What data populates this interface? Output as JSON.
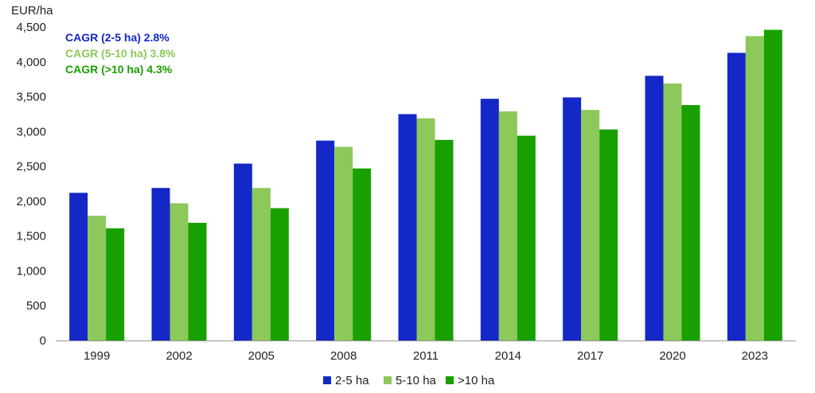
{
  "chart_data": {
    "type": "bar",
    "unit_label": "EUR/ha",
    "categories": [
      "1999",
      "2002",
      "2005",
      "2008",
      "2011",
      "2014",
      "2017",
      "2020",
      "2023"
    ],
    "series": [
      {
        "name": "2-5 ha",
        "color": "#1428c8",
        "values": [
          2120,
          2190,
          2540,
          2870,
          3250,
          3470,
          3490,
          3800,
          4130
        ]
      },
      {
        "name": "5-10 ha",
        "color": "#8cc85a",
        "values": [
          1790,
          1970,
          2190,
          2780,
          3190,
          3290,
          3310,
          3690,
          4370
        ]
      },
      {
        "name": ">10 ha",
        "color": "#18a000",
        "values": [
          1610,
          1690,
          1900,
          2470,
          2880,
          2940,
          3030,
          3380,
          4460
        ]
      }
    ],
    "ylim": [
      0,
      4500
    ],
    "yticks": [
      0,
      500,
      1000,
      1500,
      2000,
      2500,
      3000,
      3500,
      4000,
      4500
    ],
    "ytick_labels": [
      "0",
      "500",
      "1,000",
      "1,500",
      "2,000",
      "2,500",
      "3,000",
      "3,500",
      "4,000",
      "4,500"
    ],
    "grid": false,
    "legend_position": "bottom",
    "annotations": [
      {
        "text": "CAGR (2-5 ha) 2.8%",
        "color": "#1428c8"
      },
      {
        "text": "CAGR (5-10 ha) 3.8%",
        "color": "#8cc85a"
      },
      {
        "text": "CAGR (>10 ha) 4.3%",
        "color": "#18a000"
      }
    ]
  }
}
